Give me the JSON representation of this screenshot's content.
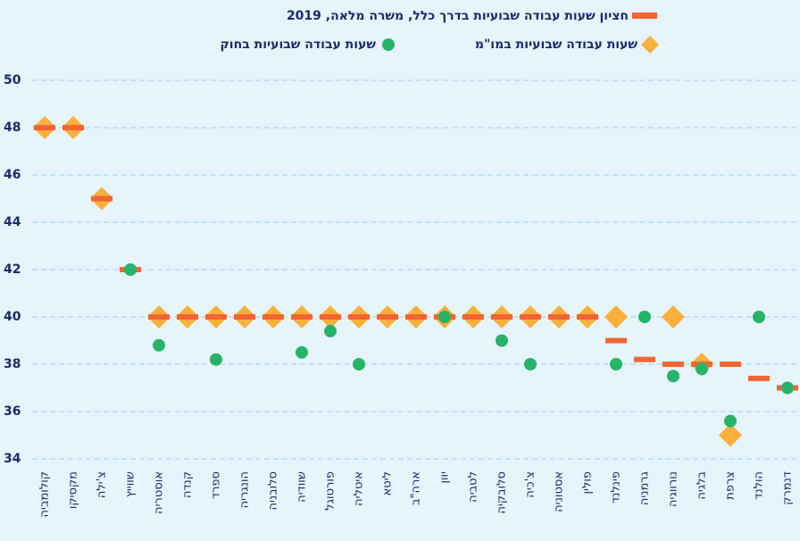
{
  "chart_data": {
    "type": "scatter",
    "categories": [
      "קולומביה",
      "מקסיקו",
      "צ'ילה",
      "שווייץ",
      "אוסטריה",
      "קנדה",
      "ספרד",
      "הונגריה",
      "סלובניה",
      "שוודיה",
      "פורטוגל",
      "איטליה",
      "ליטא",
      "ארה\"ב",
      "יוון",
      "לטביה",
      "סלובקיה",
      "צ'כיה",
      "אסטוניה",
      "פולין",
      "פינלנד",
      "גרמניה",
      "נורווגיה",
      "בלגיה",
      "צרפת",
      "הולנד",
      "דנמרק"
    ],
    "series": [
      {
        "name": "חציון שעות עבודה שבועיות בדרך כלל, משרה מלאה, 2019",
        "color": "#f26534",
        "marker": "dash",
        "values": [
          48,
          48,
          45,
          42,
          40,
          40,
          40,
          40,
          40,
          40,
          40,
          40,
          40,
          40,
          40,
          40,
          40,
          40,
          40,
          40,
          39,
          38.2,
          38,
          38,
          38,
          37.4,
          37
        ]
      },
      {
        "name": "שעות עבודה שבועיות בחוק",
        "color": "#27b36a",
        "marker": "circle",
        "values": [
          null,
          null,
          null,
          42,
          38.8,
          null,
          38.2,
          null,
          null,
          38.5,
          39.4,
          38,
          null,
          null,
          40,
          null,
          39,
          38,
          null,
          null,
          38,
          40,
          37.5,
          37.8,
          35.6,
          40,
          37
        ]
      },
      {
        "name": "שעות עבודה שבועיות במו\"מ",
        "color": "#fbb03b",
        "marker": "diamond",
        "values": [
          48,
          48,
          45,
          null,
          40,
          40,
          40,
          40,
          40,
          40,
          40,
          40,
          40,
          40,
          40,
          40,
          40,
          40,
          40,
          40,
          40,
          null,
          40,
          38,
          35,
          null,
          null
        ]
      }
    ],
    "ylim": [
      34,
      50
    ],
    "yticks": [
      34,
      36,
      38,
      40,
      42,
      44,
      46,
      48,
      50
    ],
    "grid": true
  }
}
